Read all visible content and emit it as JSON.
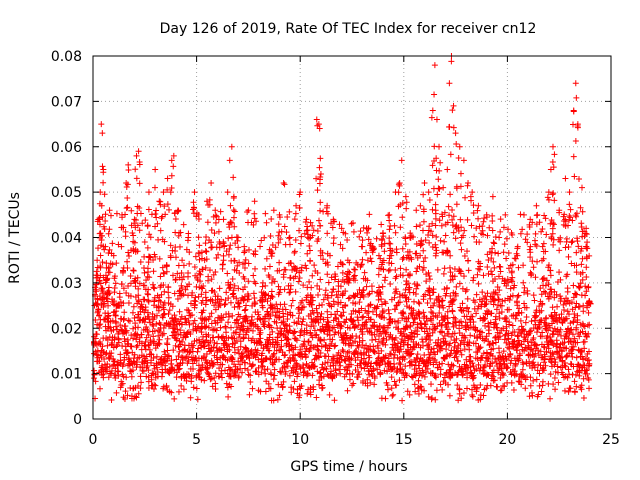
{
  "chart_data": {
    "type": "scatter",
    "title": "Day 126 of 2019, Rate Of TEC Index for receiver cn12",
    "xlabel": "GPS time / hours",
    "ylabel": "ROTI / TECUs",
    "xlim": [
      0,
      25
    ],
    "ylim": [
      0,
      0.08
    ],
    "xticks": [
      0,
      5,
      10,
      15,
      20,
      25
    ],
    "xtick_labels": [
      "0",
      "5",
      "10",
      "15",
      "20",
      "25"
    ],
    "yticks": [
      0,
      0.01,
      0.02,
      0.03,
      0.04,
      0.05,
      0.06,
      0.07,
      0.08
    ],
    "ytick_labels": [
      "0",
      "0.01",
      "0.02",
      "0.03",
      "0.04",
      "0.05",
      "0.06",
      "0.07",
      "0.08"
    ],
    "grid": true,
    "marker": "+",
    "color": "#ff0000",
    "series": [
      {
        "name": "ROTI",
        "points": [
          [
            0.1,
            0.029
          ],
          [
            0.2,
            0.035
          ],
          [
            0.3,
            0.044
          ],
          [
            0.35,
            0.05
          ],
          [
            0.4,
            0.065
          ],
          [
            0.45,
            0.063
          ],
          [
            0.5,
            0.055
          ],
          [
            0.6,
            0.038
          ],
          [
            0.7,
            0.031
          ],
          [
            0.8,
            0.046
          ],
          [
            1.0,
            0.036
          ],
          [
            1.2,
            0.025
          ],
          [
            1.4,
            0.045
          ],
          [
            1.6,
            0.052
          ],
          [
            1.7,
            0.056
          ],
          [
            1.9,
            0.041
          ],
          [
            2.0,
            0.044
          ],
          [
            2.1,
            0.058
          ],
          [
            2.2,
            0.059
          ],
          [
            2.5,
            0.039
          ],
          [
            2.7,
            0.05
          ],
          [
            3.0,
            0.055
          ],
          [
            3.2,
            0.048
          ],
          [
            3.4,
            0.05
          ],
          [
            3.6,
            0.053
          ],
          [
            3.8,
            0.057
          ],
          [
            3.9,
            0.058
          ],
          [
            4.1,
            0.046
          ],
          [
            4.3,
            0.035
          ],
          [
            4.6,
            0.04
          ],
          [
            4.9,
            0.05
          ],
          [
            5.1,
            0.045
          ],
          [
            5.3,
            0.033
          ],
          [
            5.5,
            0.048
          ],
          [
            5.7,
            0.052
          ],
          [
            5.9,
            0.046
          ],
          [
            6.1,
            0.039
          ],
          [
            6.3,
            0.044
          ],
          [
            6.5,
            0.05
          ],
          [
            6.6,
            0.057
          ],
          [
            6.7,
            0.06
          ],
          [
            6.8,
            0.049
          ],
          [
            7.0,
            0.04
          ],
          [
            7.3,
            0.038
          ],
          [
            7.5,
            0.046
          ],
          [
            7.8,
            0.048
          ],
          [
            8.2,
            0.03
          ],
          [
            8.6,
            0.037
          ],
          [
            9.0,
            0.045
          ],
          [
            9.2,
            0.052
          ],
          [
            9.5,
            0.04
          ],
          [
            9.8,
            0.047
          ],
          [
            10.0,
            0.05
          ],
          [
            10.3,
            0.044
          ],
          [
            10.5,
            0.04
          ],
          [
            10.8,
            0.066
          ],
          [
            10.9,
            0.065
          ],
          [
            11.0,
            0.054
          ],
          [
            11.3,
            0.047
          ],
          [
            11.6,
            0.044
          ],
          [
            12.0,
            0.042
          ],
          [
            12.3,
            0.035
          ],
          [
            12.6,
            0.033
          ],
          [
            13.0,
            0.038
          ],
          [
            13.2,
            0.042
          ],
          [
            13.5,
            0.038
          ],
          [
            13.8,
            0.036
          ],
          [
            14.0,
            0.041
          ],
          [
            14.3,
            0.045
          ],
          [
            14.6,
            0.05
          ],
          [
            14.8,
            0.052
          ],
          [
            14.9,
            0.057
          ],
          [
            15.1,
            0.049
          ],
          [
            15.3,
            0.04
          ],
          [
            15.6,
            0.046
          ],
          [
            15.8,
            0.047
          ],
          [
            16.0,
            0.052
          ],
          [
            16.2,
            0.05
          ],
          [
            16.4,
            0.068
          ],
          [
            16.5,
            0.078
          ],
          [
            16.6,
            0.066
          ],
          [
            16.7,
            0.06
          ],
          [
            16.9,
            0.051
          ],
          [
            17.1,
            0.055
          ],
          [
            17.2,
            0.074
          ],
          [
            17.3,
            0.08
          ],
          [
            17.4,
            0.069
          ],
          [
            17.5,
            0.063
          ],
          [
            17.7,
            0.06
          ],
          [
            17.9,
            0.057
          ],
          [
            18.1,
            0.052
          ],
          [
            18.3,
            0.05
          ],
          [
            18.6,
            0.047
          ],
          [
            19.0,
            0.045
          ],
          [
            19.3,
            0.049
          ],
          [
            19.6,
            0.04
          ],
          [
            19.9,
            0.045
          ],
          [
            20.2,
            0.041
          ],
          [
            20.5,
            0.038
          ],
          [
            20.8,
            0.045
          ],
          [
            21.1,
            0.044
          ],
          [
            21.4,
            0.047
          ],
          [
            21.7,
            0.038
          ],
          [
            22.0,
            0.05
          ],
          [
            22.1,
            0.055
          ],
          [
            22.2,
            0.06
          ],
          [
            22.5,
            0.046
          ],
          [
            22.8,
            0.053
          ],
          [
            23.0,
            0.05
          ],
          [
            23.2,
            0.068
          ],
          [
            23.3,
            0.074
          ],
          [
            23.4,
            0.065
          ],
          [
            23.6,
            0.051
          ],
          [
            23.8,
            0.042
          ],
          [
            23.95,
            0.026
          ]
        ]
      }
    ]
  }
}
